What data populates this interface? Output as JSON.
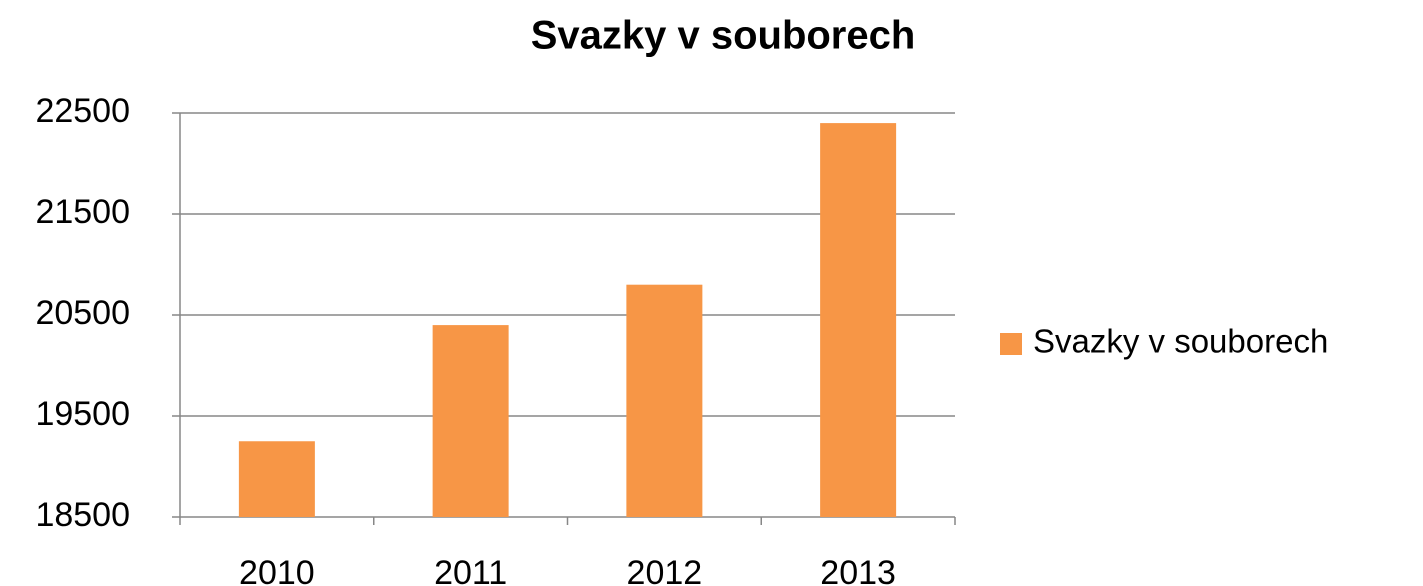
{
  "chart_data": {
    "type": "bar",
    "title": "Svazky v souborech",
    "categories": [
      "2010",
      "2011",
      "2012",
      "2013"
    ],
    "series": [
      {
        "name": "Svazky v souborech",
        "color": "#f79646",
        "values": [
          19250,
          20400,
          20800,
          22400
        ]
      }
    ],
    "ylim": [
      18500,
      22500
    ],
    "yticks": [
      18500,
      19500,
      20500,
      21500,
      22500
    ],
    "grid": true,
    "legend": "right"
  }
}
